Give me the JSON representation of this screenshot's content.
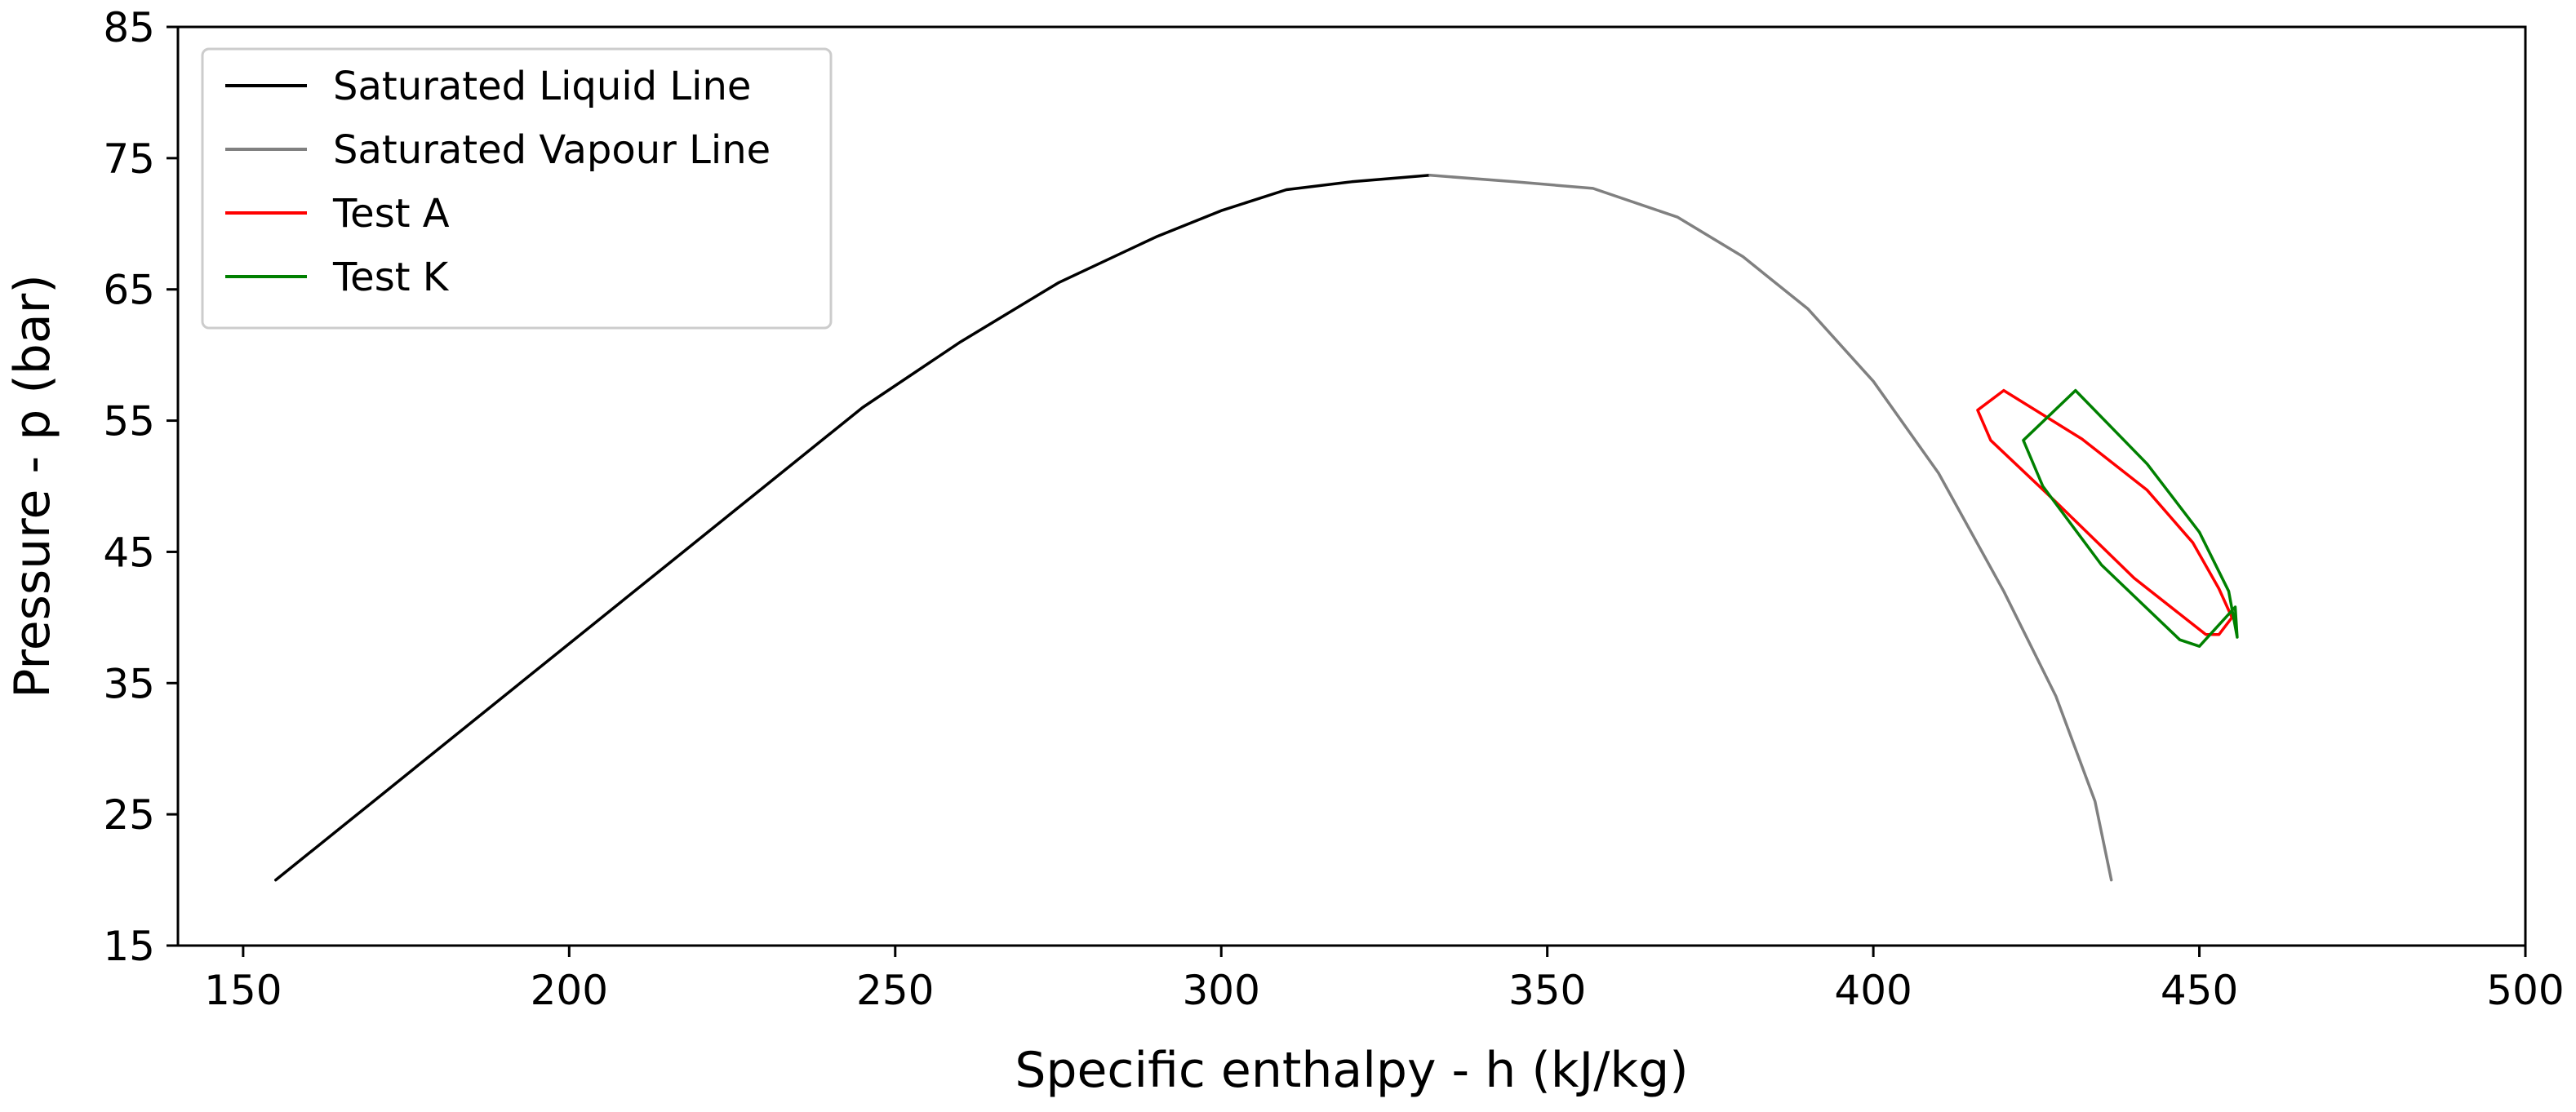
{
  "chart_data": {
    "type": "line",
    "xlabel": "Specific enthalpy - h (kJ/kg)",
    "ylabel": "Pressure - p (bar)",
    "xlim": [
      140,
      500
    ],
    "ylim": [
      15,
      85
    ],
    "xticks": [
      150,
      200,
      250,
      300,
      350,
      400,
      450,
      500
    ],
    "yticks": [
      15,
      25,
      35,
      45,
      55,
      65,
      75,
      85
    ],
    "xtick_labels": [
      "150",
      "200",
      "250",
      "300",
      "350",
      "400",
      "450",
      "500"
    ],
    "ytick_labels": [
      "15",
      "25",
      "35",
      "45",
      "55",
      "65",
      "75",
      "85"
    ],
    "grid": false,
    "legend_position": "top-left",
    "series": [
      {
        "name": "Saturated Liquid Line",
        "color": "#000000",
        "points": [
          [
            155,
            20
          ],
          [
            170,
            26
          ],
          [
            185,
            32
          ],
          [
            200,
            38
          ],
          [
            215,
            44
          ],
          [
            230,
            50
          ],
          [
            245,
            56
          ],
          [
            260,
            61
          ],
          [
            275,
            65.5
          ],
          [
            290,
            69
          ],
          [
            300,
            71
          ],
          [
            310,
            72.6
          ],
          [
            320,
            73.2
          ],
          [
            332,
            73.7
          ]
        ]
      },
      {
        "name": "Saturated Vapour Line",
        "color": "#808080",
        "points": [
          [
            332,
            73.7
          ],
          [
            345,
            73.2
          ],
          [
            357,
            72.7
          ],
          [
            370,
            70.5
          ],
          [
            380,
            67.5
          ],
          [
            390,
            63.5
          ],
          [
            400,
            58
          ],
          [
            410,
            51
          ],
          [
            420,
            42
          ],
          [
            428,
            34
          ],
          [
            434,
            26
          ],
          [
            436.5,
            20
          ]
        ]
      },
      {
        "name": "Test A",
        "color": "#ff0000",
        "points": [
          [
            420,
            57.3
          ],
          [
            432,
            53.6
          ],
          [
            442,
            49.7
          ],
          [
            449,
            45.7
          ],
          [
            453,
            42.2
          ],
          [
            455,
            40
          ],
          [
            453,
            38.7
          ],
          [
            451,
            38.7
          ],
          [
            440,
            43
          ],
          [
            428,
            48.8
          ],
          [
            418,
            53.5
          ],
          [
            416,
            55.8
          ],
          [
            420,
            57.3
          ]
        ]
      },
      {
        "name": "Test K",
        "color": "#008000",
        "points": [
          [
            431,
            57.3
          ],
          [
            442,
            51.7
          ],
          [
            450,
            46.5
          ],
          [
            454.5,
            42
          ],
          [
            455.8,
            38.5
          ],
          [
            455.5,
            40.8
          ],
          [
            450,
            37.8
          ],
          [
            447,
            38.3
          ],
          [
            435,
            44
          ],
          [
            426,
            50
          ],
          [
            423,
            53.5
          ],
          [
            431,
            57.3
          ]
        ]
      }
    ]
  }
}
